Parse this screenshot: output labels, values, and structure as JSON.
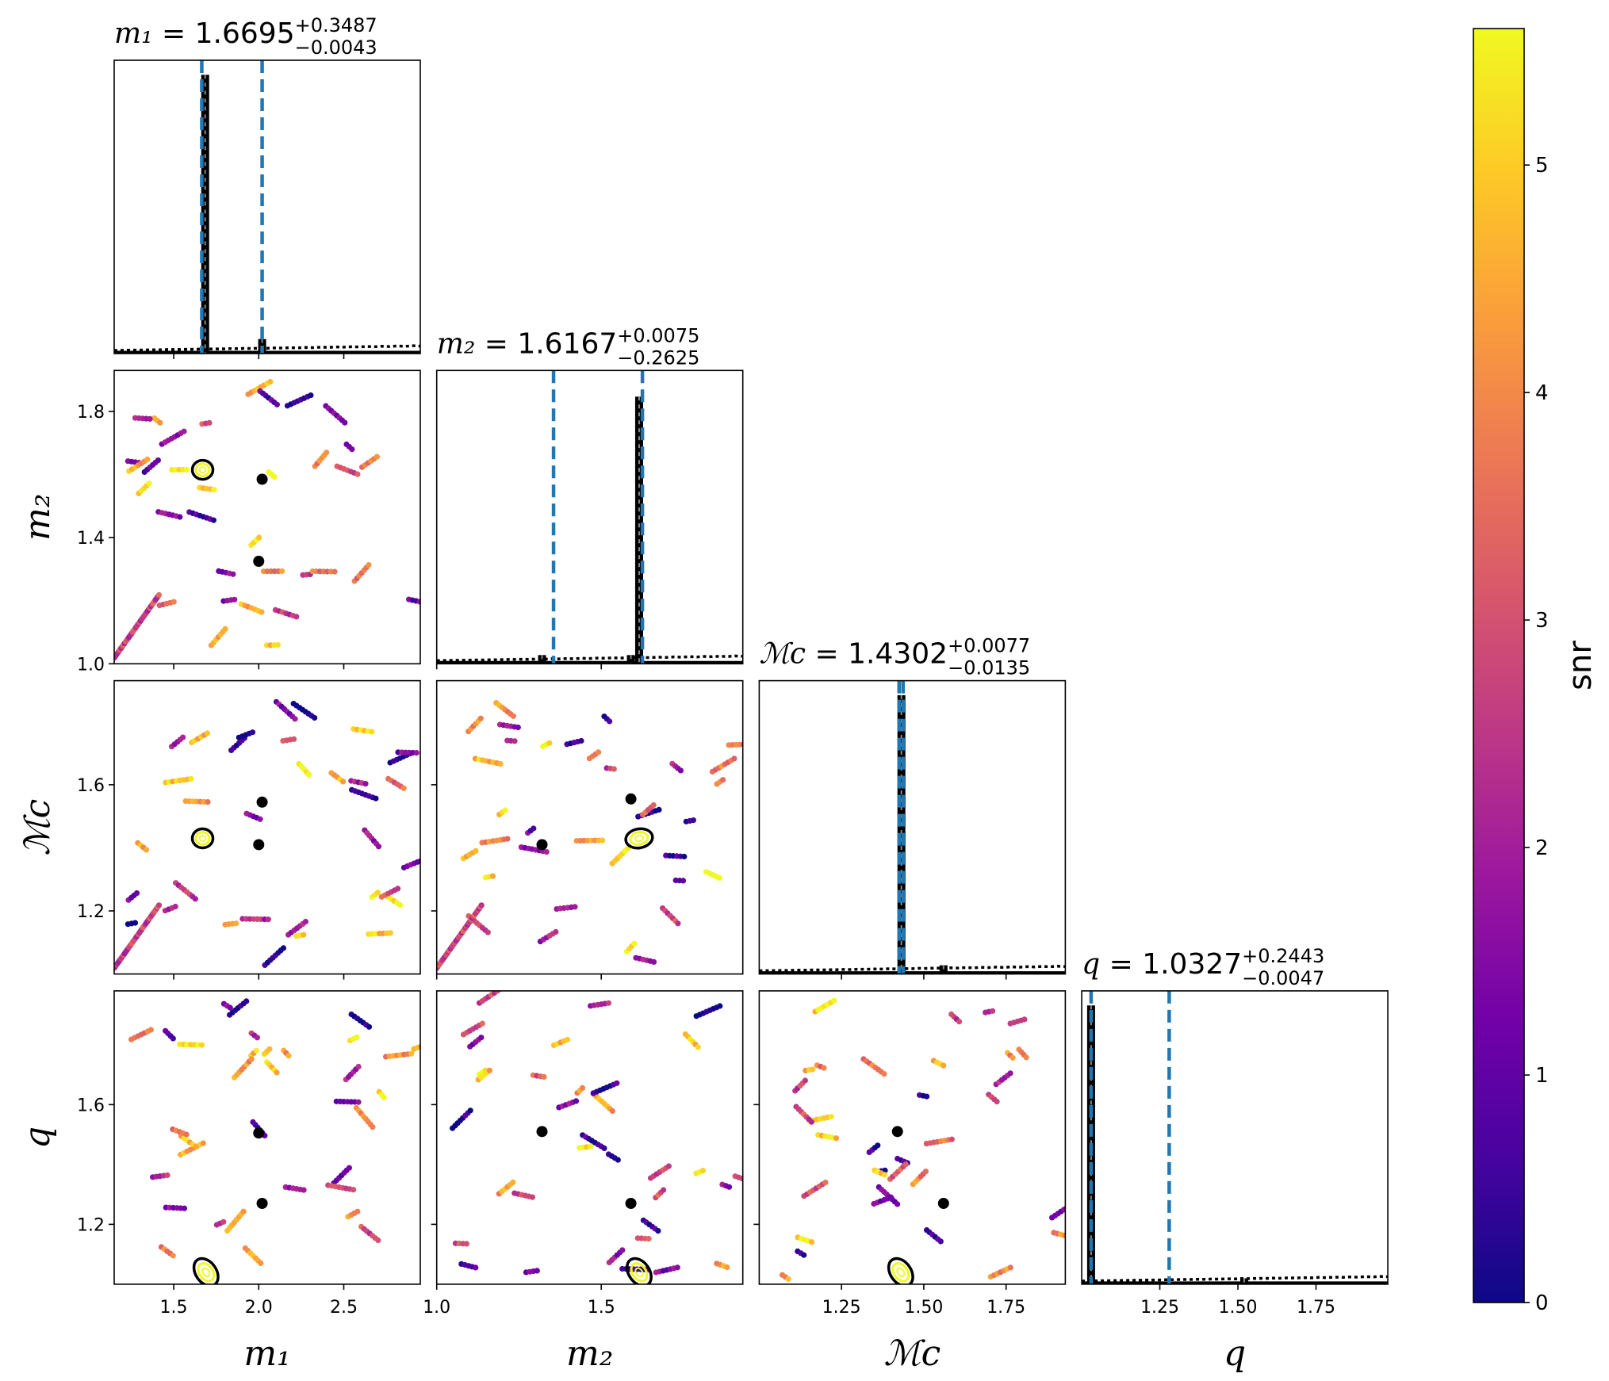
{
  "colors": {
    "marker_line": "#1f77b4",
    "histogram": "#000000",
    "contour_outer": "#000000",
    "contour_inner": "#f0f921",
    "colormap": [
      "#0d0887",
      "#46039f",
      "#7201a8",
      "#9c179e",
      "#bd3786",
      "#d8576b",
      "#ed7953",
      "#fb9f3a",
      "#fdca26",
      "#f0f921"
    ]
  },
  "chart_data": {
    "type": "scatter",
    "kind": "corner plot",
    "grid": false,
    "parameters": [
      {
        "key": "m1",
        "label": "m₁",
        "title_name": "m₁",
        "median": "1.6695",
        "plus": "+0.3487",
        "minus": "−0.0043",
        "range": [
          1.15,
          2.95
        ],
        "ticks": [
          1.5,
          2.0,
          2.5
        ],
        "tick_labels": [
          "1.5",
          "2.0",
          "2.5"
        ],
        "hist_peaks": [
          {
            "x": 1.685,
            "h": 0.96
          },
          {
            "x": 2.02,
            "h": 0.05
          }
        ],
        "markers": [
          1.665,
          2.02
        ]
      },
      {
        "key": "m2",
        "label": "m₂",
        "title_name": "m₂",
        "median": "1.6167",
        "plus": "+0.0075",
        "minus": "−0.2625",
        "range": [
          1.0,
          1.93
        ],
        "ticks": [
          1.0,
          1.4,
          1.8
        ],
        "tick_labels": [
          "1.0",
          "1.4",
          "1.8"
        ],
        "ticks_x": [
          1.0,
          1.5
        ],
        "tick_labels_x": [
          "1.0",
          "1.5"
        ],
        "hist_peaks": [
          {
            "x": 1.615,
            "h": 0.92
          },
          {
            "x": 1.32,
            "h": 0.03
          },
          {
            "x": 1.59,
            "h": 0.03
          }
        ],
        "markers": [
          1.355,
          1.625
        ]
      },
      {
        "key": "Mc",
        "label": "ℳc",
        "title_name": "ℳc",
        "median": "1.4302",
        "plus": "+0.0077",
        "minus": "−0.0135",
        "range": [
          1.0,
          1.93
        ],
        "ticks": [
          1.2,
          1.6
        ],
        "tick_labels": [
          "1.2",
          "1.6"
        ],
        "ticks_x": [
          1.25,
          1.5,
          1.75
        ],
        "tick_labels_x": [
          "1.25",
          "1.50",
          "1.75"
        ],
        "hist_peaks": [
          {
            "x": 1.432,
            "h": 0.96
          },
          {
            "x": 1.56,
            "h": 0.03
          }
        ],
        "markers": [
          1.425,
          1.437
        ]
      },
      {
        "key": "q",
        "label": "q",
        "title_name": "q",
        "median": "1.0327",
        "plus": "+0.2443",
        "minus": "−0.0047",
        "range": [
          1.0,
          1.98
        ],
        "ticks": [
          1.2,
          1.6
        ],
        "tick_labels": [
          "1.2",
          "1.6"
        ],
        "ticks_x": [
          1.25,
          1.5,
          1.75
        ],
        "tick_labels_x": [
          "1.25",
          "1.50",
          "1.75"
        ],
        "hist_peaks": [
          {
            "x": 1.03,
            "h": 0.96
          },
          {
            "x": 1.52,
            "h": 0.02
          }
        ],
        "markers": [
          1.03,
          1.28
        ]
      }
    ],
    "colorbar": {
      "label": "snr",
      "range": [
        0,
        5.6
      ],
      "ticks": [
        0,
        1,
        2,
        3,
        4,
        5
      ],
      "tick_labels": [
        "0",
        "1",
        "2",
        "3",
        "4",
        "5"
      ]
    },
    "contours": [
      {
        "px": 0,
        "py": 1,
        "x": 1.67,
        "y": 1.615
      },
      {
        "px": 0,
        "py": 2,
        "x": 1.67,
        "y": 1.43
      },
      {
        "px": 1,
        "py": 2,
        "x": 1.615,
        "y": 1.43
      },
      {
        "px": 0,
        "py": 3,
        "x": 1.69,
        "y": 1.04
      },
      {
        "px": 1,
        "py": 3,
        "x": 1.615,
        "y": 1.04
      },
      {
        "px": 2,
        "py": 3,
        "x": 1.43,
        "y": 1.04
      }
    ],
    "dark_blobs": [
      {
        "px": 0,
        "py": 1,
        "x": 2.02,
        "y": 1.585
      },
      {
        "px": 0,
        "py": 1,
        "x": 2.0,
        "y": 1.325
      },
      {
        "px": 0,
        "py": 2,
        "x": 2.02,
        "y": 1.545
      },
      {
        "px": 0,
        "py": 2,
        "x": 2.0,
        "y": 1.41
      },
      {
        "px": 1,
        "py": 2,
        "x": 1.32,
        "y": 1.41
      },
      {
        "px": 1,
        "py": 2,
        "x": 1.59,
        "y": 1.555
      },
      {
        "px": 0,
        "py": 3,
        "x": 2.0,
        "y": 1.505
      },
      {
        "px": 0,
        "py": 3,
        "x": 2.02,
        "y": 1.27
      },
      {
        "px": 1,
        "py": 3,
        "x": 1.32,
        "y": 1.51
      },
      {
        "px": 1,
        "py": 3,
        "x": 1.59,
        "y": 1.27
      },
      {
        "px": 2,
        "py": 3,
        "x": 1.42,
        "y": 1.51
      },
      {
        "px": 2,
        "py": 3,
        "x": 1.56,
        "y": 1.27
      }
    ]
  }
}
